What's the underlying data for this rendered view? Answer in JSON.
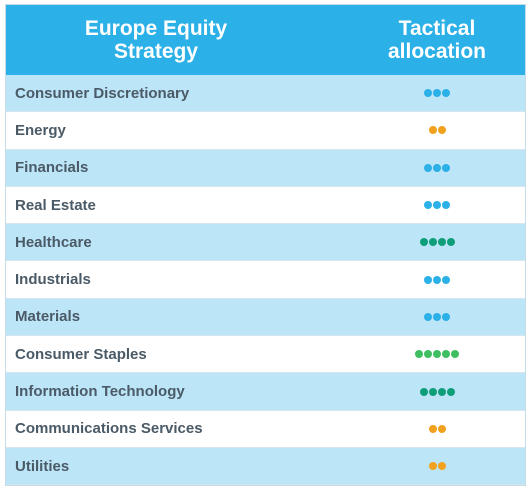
{
  "header": {
    "col1": "Europe Equity\nStrategy",
    "col2": "Tactical\nallocation"
  },
  "colors": {
    "header_bg": "#2bb0e7",
    "row_alt_bg": "#bde5f8",
    "light_blue": "#2bb0e7",
    "orange": "#f2a11e",
    "teal": "#0f9e7a",
    "green": "#3fbf62"
  },
  "rows": [
    {
      "label": "Consumer Discretionary",
      "dots": 3,
      "color": "#2bb0e7"
    },
    {
      "label": "Energy",
      "dots": 2,
      "color": "#f2a11e"
    },
    {
      "label": "Financials",
      "dots": 3,
      "color": "#2bb0e7"
    },
    {
      "label": "Real Estate",
      "dots": 3,
      "color": "#2bb0e7"
    },
    {
      "label": "Healthcare",
      "dots": 4,
      "color": "#0f9e7a"
    },
    {
      "label": "Industrials",
      "dots": 3,
      "color": "#2bb0e7"
    },
    {
      "label": "Materials",
      "dots": 3,
      "color": "#2bb0e7"
    },
    {
      "label": "Consumer Staples",
      "dots": 5,
      "color": "#3fbf62"
    },
    {
      "label": "Information Technology",
      "dots": 4,
      "color": "#0f9e7a"
    },
    {
      "label": "Communications Services",
      "dots": 2,
      "color": "#f2a11e"
    },
    {
      "label": "Utilities",
      "dots": 2,
      "color": "#f2a11e"
    }
  ]
}
